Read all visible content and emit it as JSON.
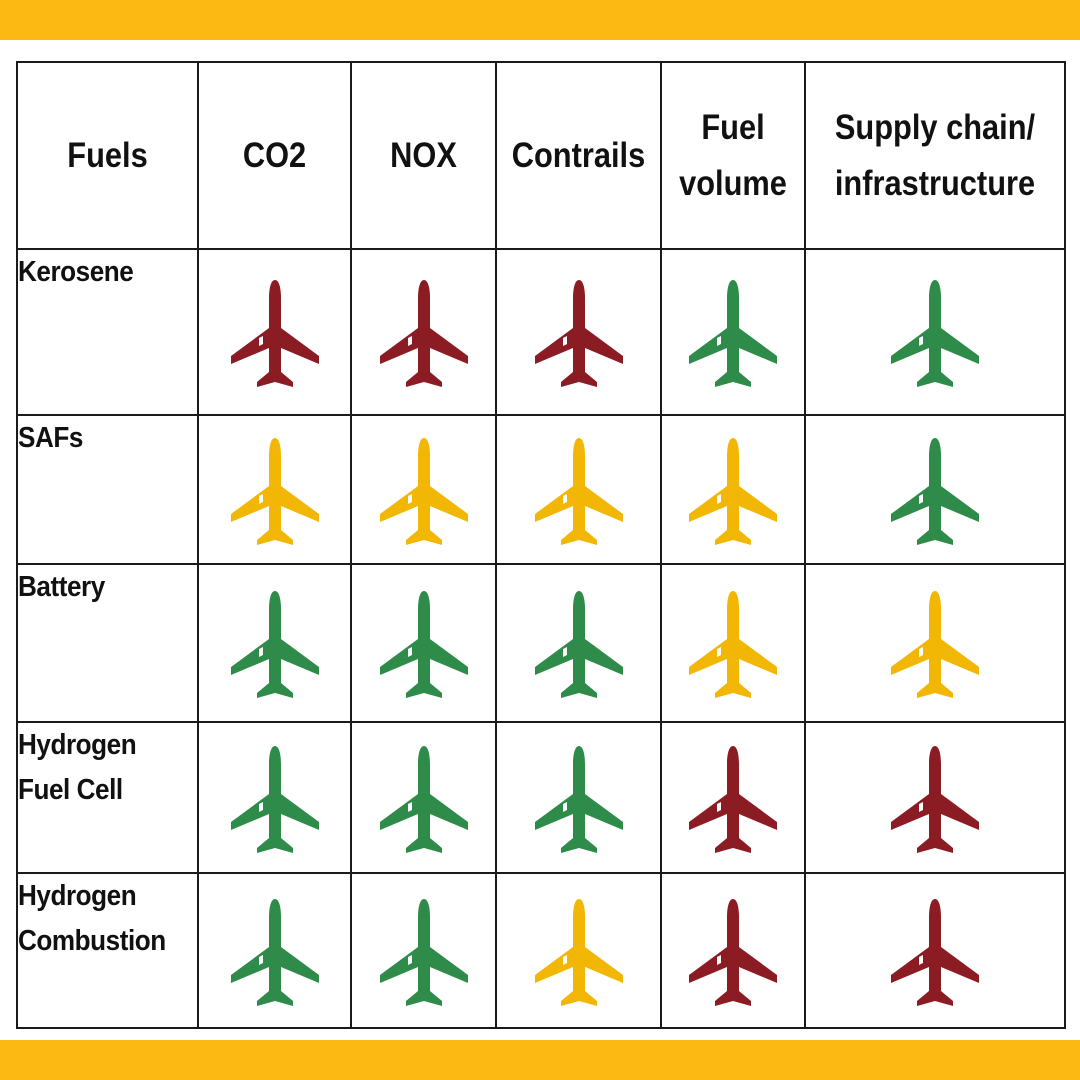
{
  "colors": {
    "band": "#FDB913",
    "red": "#8B1C24",
    "yellow": "#F2B705",
    "green": "#2E8B4A"
  },
  "header": {
    "fuels": "Fuels",
    "co2": "CO2",
    "nox": "NOX",
    "contrails": "Contrails",
    "fuel_volume_line1": "Fuel",
    "fuel_volume_line2": "volume",
    "supply_line1": "Supply chain/",
    "supply_line2": "infrastructure"
  },
  "rows": [
    {
      "label_lines": [
        "Kerosene"
      ],
      "ratings": [
        "red",
        "red",
        "red",
        "green",
        "green"
      ]
    },
    {
      "label_lines": [
        "SAFs"
      ],
      "ratings": [
        "yellow",
        "yellow",
        "yellow",
        "yellow",
        "green"
      ]
    },
    {
      "label_lines": [
        "Battery"
      ],
      "ratings": [
        "green",
        "green",
        "green",
        "yellow",
        "yellow"
      ]
    },
    {
      "label_lines": [
        "Hydrogen",
        "Fuel Cell"
      ],
      "ratings": [
        "green",
        "green",
        "green",
        "red",
        "red"
      ]
    },
    {
      "label_lines": [
        "Hydrogen",
        "Combustion"
      ],
      "ratings": [
        "green",
        "green",
        "yellow",
        "red",
        "red"
      ]
    }
  ],
  "icon": "airplane-icon"
}
